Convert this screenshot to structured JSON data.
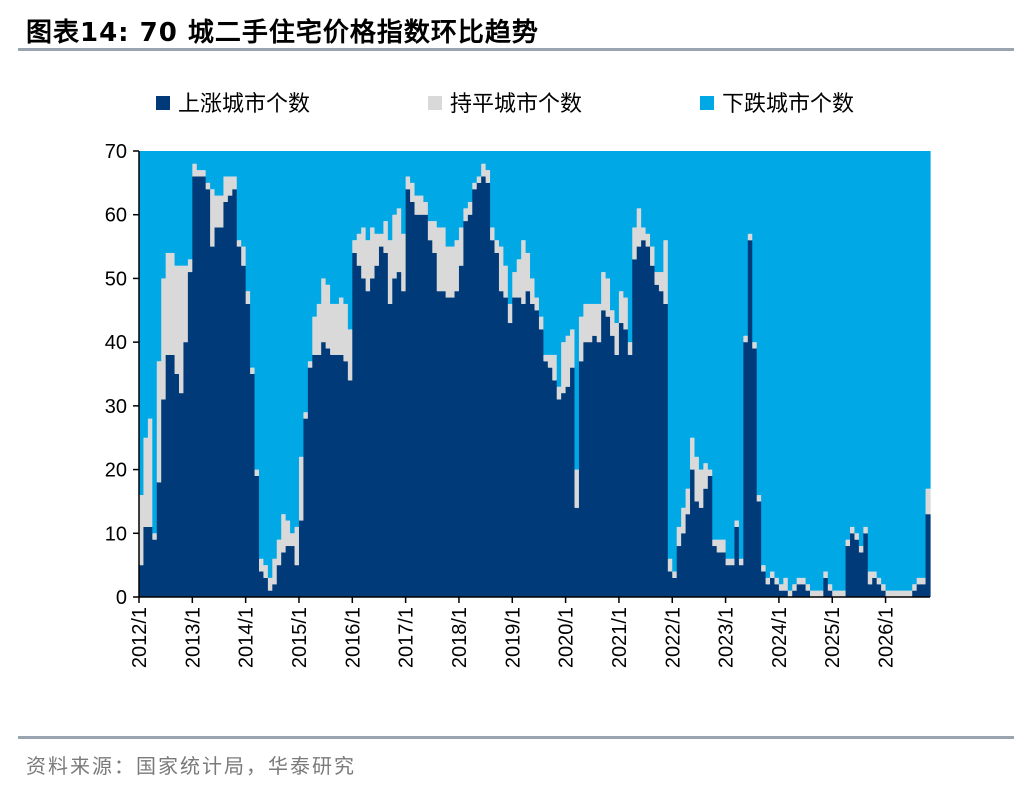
{
  "figure": {
    "title": "图表14:   70 城二手住宅价格指数环比趋势",
    "source": "资料来源：国家统计局，华泰研究"
  },
  "chart_data": {
    "type": "bar",
    "stacked": true,
    "ylim": [
      0,
      70
    ],
    "yticks": [
      0,
      10,
      20,
      30,
      40,
      50,
      60,
      70
    ],
    "xticks": [
      "2012/1",
      "2013/1",
      "2014/1",
      "2015/1",
      "2016/1",
      "2017/1",
      "2018/1",
      "2019/1",
      "2020/1",
      "2021/1",
      "2022/1",
      "2023/1",
      "2024/1",
      "2025/1",
      "2026/1"
    ],
    "legend_position": "top",
    "grid": false,
    "colors": {
      "up": "#003A78",
      "flat": "#D9D9D9",
      "down": "#00A8E6"
    },
    "series": [
      {
        "name": "上涨城市个数",
        "values": [
          5,
          11,
          11,
          9,
          18,
          31,
          38,
          38,
          35,
          32,
          40,
          51,
          66,
          66,
          66,
          64,
          55,
          58,
          58,
          62,
          63,
          64,
          55,
          52,
          46,
          35,
          19,
          4,
          3,
          1,
          2,
          5,
          7,
          8,
          8,
          5,
          12,
          28,
          36,
          38,
          38,
          40,
          39,
          38,
          38,
          38,
          37,
          34,
          54,
          52,
          50,
          48,
          50,
          52,
          55,
          54,
          46,
          50,
          51,
          48,
          64,
          62,
          60,
          60,
          60,
          56,
          54,
          48,
          48,
          47,
          47,
          48,
          52,
          59,
          60,
          64,
          65,
          66,
          65,
          56,
          54,
          48,
          47,
          43,
          47,
          47,
          46,
          48,
          46,
          45,
          42,
          37,
          36,
          34,
          31,
          32,
          33,
          36,
          14,
          37,
          40,
          40,
          41,
          40,
          45,
          44,
          41,
          38,
          43,
          42,
          38,
          53,
          55,
          56,
          55,
          52,
          49,
          48,
          46,
          4,
          3,
          8,
          10,
          13,
          20,
          15,
          14,
          17,
          19,
          8,
          7,
          7,
          5,
          5,
          11,
          5,
          40,
          56,
          39,
          15,
          4,
          2,
          3,
          2,
          1,
          1,
          0,
          1,
          2,
          2,
          1,
          0,
          0,
          0,
          3,
          1,
          0,
          0,
          0,
          8,
          10,
          9,
          7,
          10,
          2,
          3,
          2,
          1,
          0,
          0,
          0,
          0,
          0,
          0,
          1,
          2,
          2,
          13
        ]
      },
      {
        "name": "持平城市个数",
        "values": [
          11,
          14,
          17,
          1,
          19,
          19,
          16,
          16,
          17,
          20,
          12,
          2,
          2,
          1,
          1,
          1,
          9,
          5,
          5,
          4,
          3,
          2,
          1,
          3,
          2,
          1,
          1,
          2,
          2,
          2,
          4,
          4,
          6,
          4,
          2,
          6,
          10,
          1,
          1,
          6,
          8,
          10,
          10,
          8,
          8,
          9,
          9,
          8,
          2,
          5,
          8,
          8,
          8,
          5,
          2,
          5,
          10,
          10,
          10,
          9,
          2,
          3,
          3,
          3,
          2,
          3,
          5,
          10,
          10,
          8,
          8,
          8,
          6,
          2,
          2,
          1,
          1,
          2,
          2,
          2,
          2,
          7,
          5,
          3,
          4,
          6,
          10,
          6,
          4,
          2,
          2,
          1,
          2,
          4,
          2,
          8,
          8,
          6,
          6,
          7,
          6,
          6,
          5,
          6,
          6,
          6,
          4,
          5,
          5,
          5,
          2,
          5,
          6,
          2,
          2,
          3,
          2,
          3,
          10,
          2,
          1,
          3,
          4,
          4,
          5,
          7,
          6,
          4,
          1,
          1,
          2,
          2,
          1,
          1,
          1,
          1,
          1,
          1,
          1,
          1,
          1,
          1,
          1,
          1,
          1,
          2,
          1,
          1,
          1,
          1,
          1,
          1,
          1,
          1,
          1,
          1,
          1,
          1,
          1,
          1,
          1,
          1,
          1,
          1,
          2,
          1,
          1,
          1,
          1,
          1,
          1,
          1,
          1,
          1,
          1,
          1,
          1,
          4
        ]
      }
    ],
    "down_series_name": "下跌城市个数",
    "total_cities": 70
  }
}
